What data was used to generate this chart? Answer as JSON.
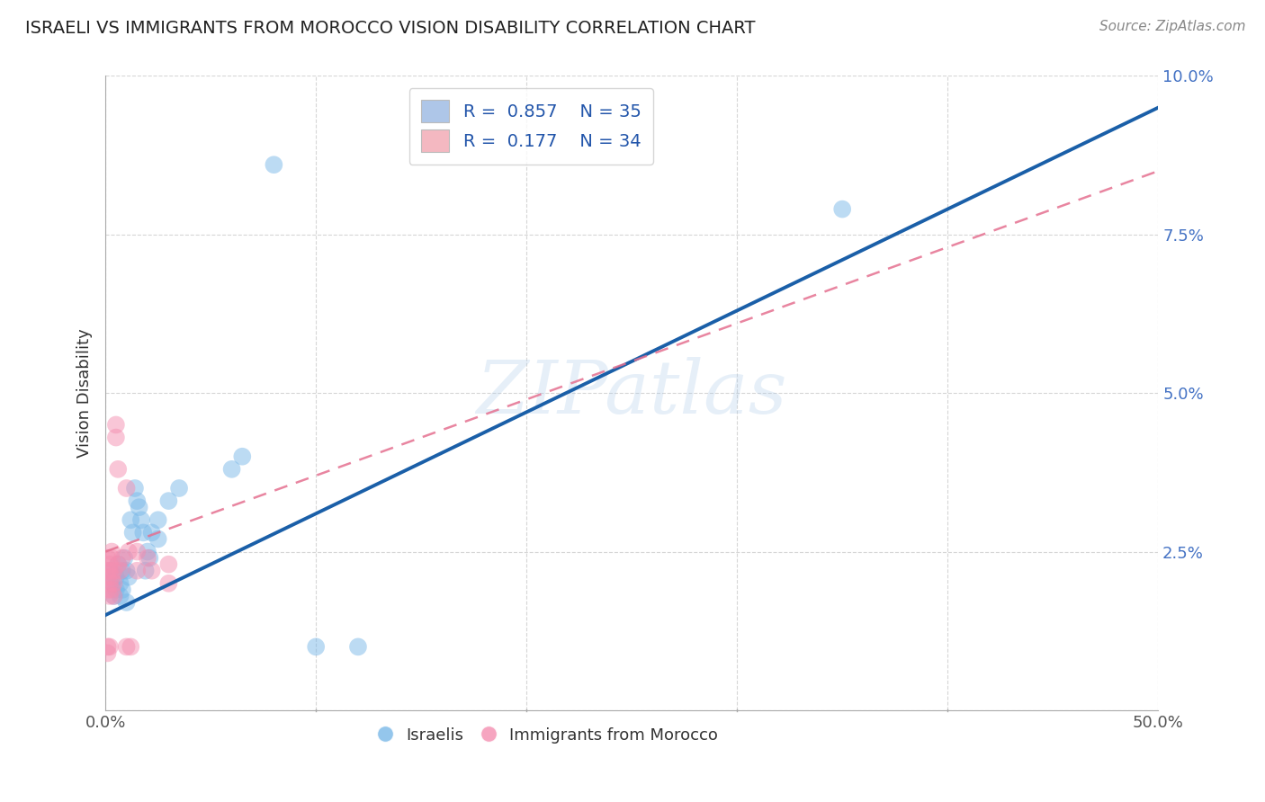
{
  "title": "ISRAELI VS IMMIGRANTS FROM MOROCCO VISION DISABILITY CORRELATION CHART",
  "source": "Source: ZipAtlas.com",
  "ylabel": "Vision Disability",
  "xlim": [
    0.0,
    0.5
  ],
  "ylim": [
    0.0,
    0.1
  ],
  "xticks": [
    0.0,
    0.1,
    0.2,
    0.3,
    0.4,
    0.5
  ],
  "yticks": [
    0.0,
    0.025,
    0.05,
    0.075,
    0.1
  ],
  "watermark_text": "ZIPatlas",
  "blue_color": "#7ab8e8",
  "pink_color": "#f48fb1",
  "trendline_blue_color": "#1a5fa8",
  "trendline_pink_color": "#e57090",
  "background_color": "#ffffff",
  "grid_color": "#cccccc",
  "title_color": "#333333",
  "blue_scatter": [
    [
      0.002,
      0.022
    ],
    [
      0.003,
      0.02
    ],
    [
      0.004,
      0.018
    ],
    [
      0.005,
      0.021
    ],
    [
      0.005,
      0.019
    ],
    [
      0.006,
      0.023
    ],
    [
      0.007,
      0.02
    ],
    [
      0.007,
      0.018
    ],
    [
      0.008,
      0.022
    ],
    [
      0.008,
      0.019
    ],
    [
      0.009,
      0.024
    ],
    [
      0.01,
      0.022
    ],
    [
      0.01,
      0.017
    ],
    [
      0.011,
      0.021
    ],
    [
      0.012,
      0.03
    ],
    [
      0.013,
      0.028
    ],
    [
      0.014,
      0.035
    ],
    [
      0.015,
      0.033
    ],
    [
      0.016,
      0.032
    ],
    [
      0.017,
      0.03
    ],
    [
      0.018,
      0.028
    ],
    [
      0.019,
      0.022
    ],
    [
      0.02,
      0.025
    ],
    [
      0.021,
      0.024
    ],
    [
      0.022,
      0.028
    ],
    [
      0.025,
      0.03
    ],
    [
      0.025,
      0.027
    ],
    [
      0.03,
      0.033
    ],
    [
      0.035,
      0.035
    ],
    [
      0.06,
      0.038
    ],
    [
      0.065,
      0.04
    ],
    [
      0.08,
      0.086
    ],
    [
      0.1,
      0.01
    ],
    [
      0.12,
      0.01
    ],
    [
      0.35,
      0.079
    ]
  ],
  "pink_scatter": [
    [
      0.001,
      0.022
    ],
    [
      0.001,
      0.024
    ],
    [
      0.001,
      0.021
    ],
    [
      0.001,
      0.019
    ],
    [
      0.002,
      0.023
    ],
    [
      0.002,
      0.02
    ],
    [
      0.002,
      0.022
    ],
    [
      0.002,
      0.018
    ],
    [
      0.003,
      0.025
    ],
    [
      0.003,
      0.021
    ],
    [
      0.003,
      0.019
    ],
    [
      0.003,
      0.024
    ],
    [
      0.004,
      0.022
    ],
    [
      0.004,
      0.02
    ],
    [
      0.004,
      0.018
    ],
    [
      0.005,
      0.043
    ],
    [
      0.005,
      0.045
    ],
    [
      0.006,
      0.023
    ],
    [
      0.006,
      0.038
    ],
    [
      0.007,
      0.022
    ],
    [
      0.008,
      0.024
    ],
    [
      0.01,
      0.035
    ],
    [
      0.011,
      0.025
    ],
    [
      0.015,
      0.022
    ],
    [
      0.015,
      0.025
    ],
    [
      0.02,
      0.024
    ],
    [
      0.022,
      0.022
    ],
    [
      0.03,
      0.023
    ],
    [
      0.03,
      0.02
    ],
    [
      0.001,
      0.01
    ],
    [
      0.001,
      0.009
    ],
    [
      0.002,
      0.01
    ],
    [
      0.01,
      0.01
    ],
    [
      0.012,
      0.01
    ]
  ]
}
